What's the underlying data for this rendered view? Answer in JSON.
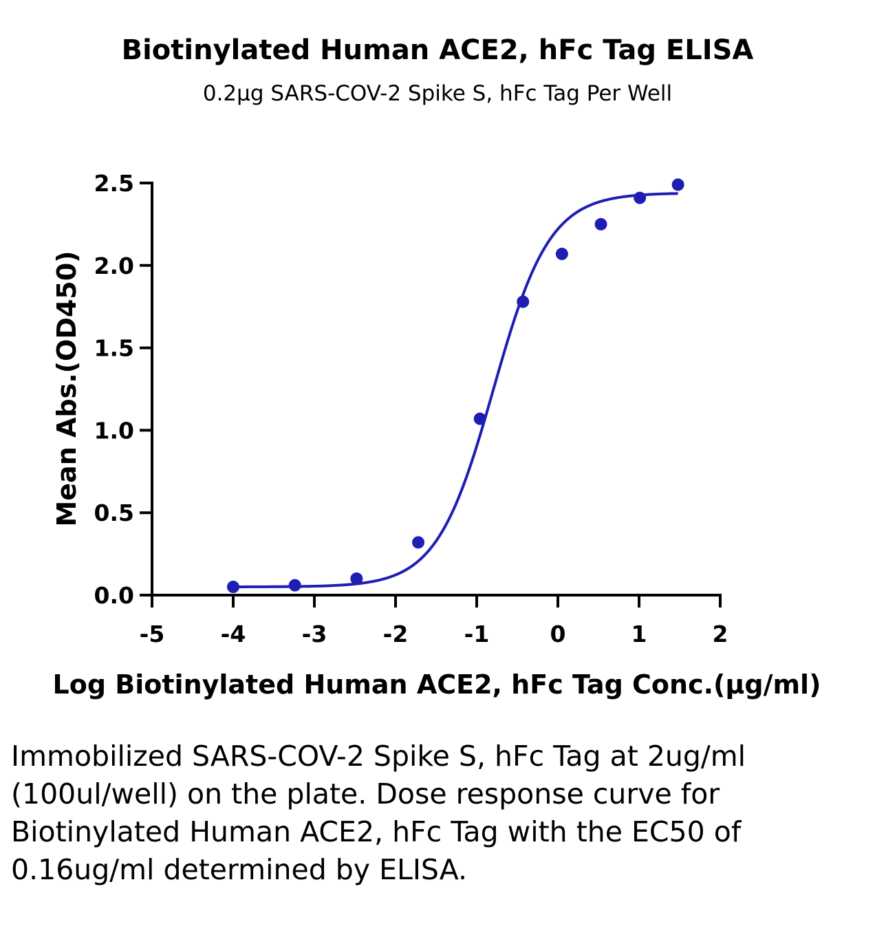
{
  "title": "Biotinylated Human ACE2, hFc Tag ELISA",
  "subtitle": "0.2μg SARS-COV-2 Spike S, hFc Tag Per Well",
  "caption": "Immobilized SARS-COV-2 Spike S, hFc Tag at 2ug/ml (100ul/well) on the plate. Dose response curve for Biotinylated Human ACE2, hFc Tag with the EC50 of 0.16ug/ml determined by ELISA.",
  "colors": {
    "series": "#1e1eb4",
    "axis": "#000000"
  },
  "chart_data": {
    "type": "scatter",
    "title": "Biotinylated Human ACE2, hFc Tag ELISA",
    "subtitle": "0.2μg SARS-COV-2 Spike S, hFc Tag Per Well",
    "xlabel": "Log Biotinylated Human ACE2, hFc Tag Conc.(μg/ml)",
    "ylabel": "Mean Abs.(OD450)",
    "xlim": [
      -5,
      2
    ],
    "ylim": [
      0,
      2.5
    ],
    "x_ticks": [
      "-5",
      "-4",
      "-3",
      "-2",
      "-1",
      "0",
      "1",
      "2"
    ],
    "y_ticks": [
      "0.0",
      "0.5",
      "1.0",
      "1.5",
      "2.0",
      "2.5"
    ],
    "grid": false,
    "series": [
      {
        "x": [
          -4.0,
          -3.24,
          -2.48,
          -1.72,
          -0.96,
          -0.43,
          0.05,
          0.53,
          1.01,
          1.48
        ],
        "y": [
          0.05,
          0.06,
          0.1,
          0.32,
          1.07,
          1.78,
          2.07,
          2.25,
          2.41,
          2.49
        ],
        "fit": "4PL sigmoidal curve"
      }
    ]
  }
}
